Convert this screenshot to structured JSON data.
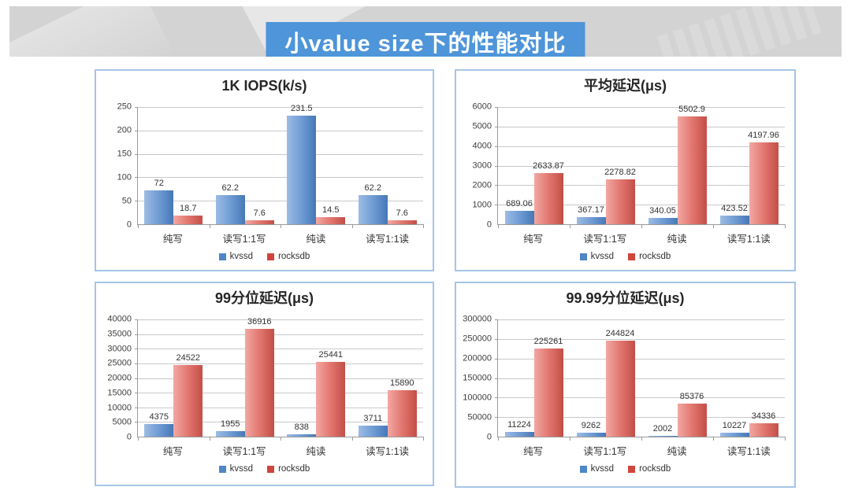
{
  "page": {
    "banner_title": "小value size下的性能对比"
  },
  "colors": {
    "banner_bg": "#d3d3d3",
    "title_box_bg": "#4e95d9",
    "panel_border": "#a6c5e8",
    "kvssd_swatch": "#4f86c6",
    "rocksdb_swatch": "#d0453c",
    "gridline": "#c9c9c9",
    "axis": "#9a9a9a"
  },
  "chart_data": [
    {
      "type": "bar",
      "title": "1K IOPS(k/s)",
      "categories": [
        "纯写",
        "读写1:1写",
        "纯读",
        "读写1:1读"
      ],
      "series": [
        {
          "name": "kvssd",
          "values": [
            72,
            62.2,
            231.5,
            62.2
          ]
        },
        {
          "name": "rocksdb",
          "values": [
            18.7,
            7.6,
            14.5,
            7.6
          ]
        }
      ],
      "ylim": [
        0,
        250
      ],
      "ystep": 50,
      "grid": true,
      "legend_position": "bottom",
      "xlabel": "",
      "ylabel": ""
    },
    {
      "type": "bar",
      "title": "平均延迟(μs)",
      "categories": [
        "纯写",
        "读写1:1写",
        "纯读",
        "读写1:1读"
      ],
      "series": [
        {
          "name": "kvssd",
          "values": [
            689.06,
            367.17,
            340.05,
            423.52
          ]
        },
        {
          "name": "rocksdb",
          "values": [
            2633.87,
            2278.82,
            5502.9,
            4197.96
          ]
        }
      ],
      "ylim": [
        0,
        6000
      ],
      "ystep": 1000,
      "grid": true,
      "legend_position": "bottom",
      "xlabel": "",
      "ylabel": ""
    },
    {
      "type": "bar",
      "title": "99分位延迟(μs)",
      "categories": [
        "纯写",
        "读写1:1写",
        "纯读",
        "读写1:1读"
      ],
      "series": [
        {
          "name": "kvssd",
          "values": [
            4375,
            1955,
            838,
            3711
          ]
        },
        {
          "name": "rocksdb",
          "values": [
            24522,
            36916,
            25441,
            15890
          ]
        }
      ],
      "ylim": [
        0,
        40000
      ],
      "ystep": 5000,
      "grid": true,
      "legend_position": "bottom",
      "xlabel": "",
      "ylabel": ""
    },
    {
      "type": "bar",
      "title": "99.99分位延迟(μs)",
      "categories": [
        "纯写",
        "读写1:1写",
        "纯读",
        "读写1:1读"
      ],
      "series": [
        {
          "name": "kvssd",
          "values": [
            11224,
            9262,
            2002,
            10227
          ]
        },
        {
          "name": "rocksdb",
          "values": [
            225261,
            244824,
            85376,
            34336
          ]
        }
      ],
      "ylim": [
        0,
        300000
      ],
      "ystep": 50000,
      "grid": true,
      "legend_position": "bottom",
      "xlabel": "",
      "ylabel": ""
    }
  ]
}
